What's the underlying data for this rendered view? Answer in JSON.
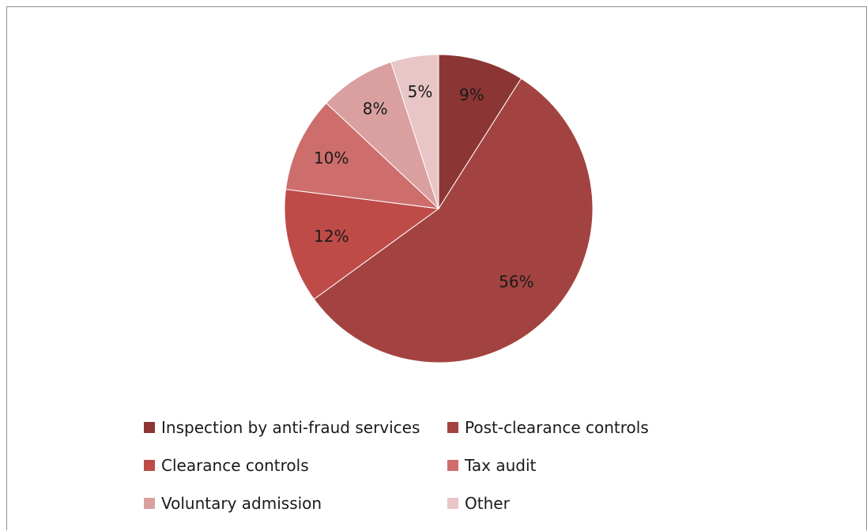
{
  "chart_data": {
    "type": "pie",
    "title": "",
    "start_angle_deg": 0,
    "direction": "clockwise",
    "slices": [
      {
        "label": "Inspection by anti-fraud services",
        "value": 9,
        "display": "9%",
        "color": "#8B3634"
      },
      {
        "label": "Post-clearance controls",
        "value": 56,
        "display": "56%",
        "color": "#A34341"
      },
      {
        "label": "Clearance controls",
        "value": 12,
        "display": "12%",
        "color": "#BE4B48"
      },
      {
        "label": "Tax audit",
        "value": 10,
        "display": "10%",
        "color": "#CD6E6C"
      },
      {
        "label": "Voluntary admission",
        "value": 8,
        "display": "8%",
        "color": "#DAA0A0"
      },
      {
        "label": "Other",
        "value": 5,
        "display": "5%",
        "color": "#E8C5C6"
      }
    ],
    "legend_position": "bottom"
  }
}
